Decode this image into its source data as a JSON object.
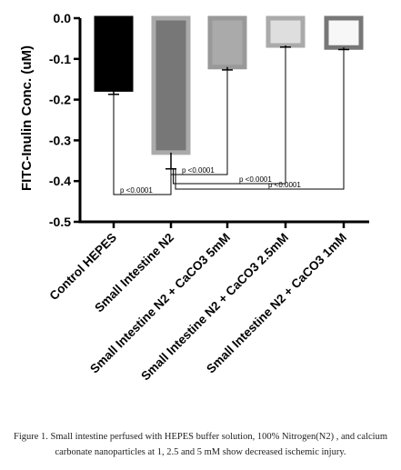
{
  "chart_data": {
    "type": "bar",
    "ylabel": "FITC-Inulin Conc. (uM)",
    "ylim": [
      -0.5,
      0.0
    ],
    "yticks": [
      0.0,
      -0.1,
      -0.2,
      -0.3,
      -0.4,
      -0.5
    ],
    "ytick_labels": [
      "0.0",
      "-0.1",
      "-0.2",
      "-0.3",
      "-0.4",
      "-0.5"
    ],
    "categories": [
      "Control HEPES",
      "Small Intestine N2",
      "Small Intestine N2 + CaCO3 5mM",
      "Small Intestine N2 + CaCO3 2.5mM",
      "Small Intestine N2 + CaCO3 1mM"
    ],
    "values": [
      -0.175,
      -0.33,
      -0.12,
      -0.067,
      -0.072
    ],
    "errors": [
      0.012,
      0.04,
      0.007,
      0.004,
      0.005
    ],
    "bar_fill": [
      "#000000",
      "#777777",
      "#aaaaaa",
      "#dedede",
      "#f7f7f7"
    ],
    "bar_stroke": [
      "#000000",
      "#aaaaaa",
      "#999999",
      "#aaaaaa",
      "#777777"
    ],
    "comparisons": [
      {
        "from": 0,
        "to": 1,
        "label": "p <0.0001"
      },
      {
        "from": 1,
        "to": 2,
        "label": "p <0.0001"
      },
      {
        "from": 1,
        "to": 3,
        "label": "p <0.0001"
      },
      {
        "from": 1,
        "to": 4,
        "label": "p <0.0001"
      }
    ]
  },
  "caption": "Figure 1. Small intestine perfused with HEPES buffer solution, 100% Nitrogen(N2) , and calcium carbonate nanoparticles at 1, 2.5 and 5 mM show decreased ischemic injury."
}
